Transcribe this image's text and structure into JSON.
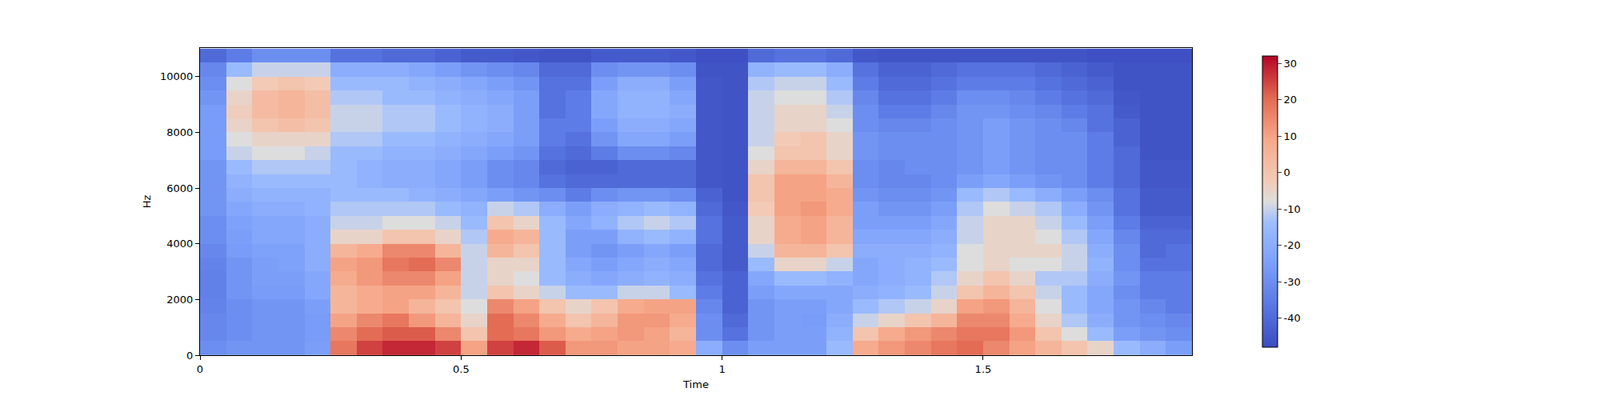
{
  "chart_data": {
    "type": "heatmap",
    "xlabel": "Time",
    "ylabel": "Hz",
    "xlim": [
      0,
      1.9
    ],
    "ylim": [
      0,
      11025
    ],
    "xticks": [
      0,
      0.5,
      1,
      1.5
    ],
    "yticks": [
      0,
      2000,
      4000,
      6000,
      8000,
      10000
    ],
    "zlim": [
      -48,
      32
    ],
    "zticks": [
      -40,
      -30,
      -20,
      -10,
      0,
      10,
      20,
      30
    ],
    "x": [
      0.025,
      0.075,
      0.125,
      0.175,
      0.225,
      0.275,
      0.325,
      0.375,
      0.425,
      0.475,
      0.525,
      0.575,
      0.625,
      0.675,
      0.725,
      0.775,
      0.825,
      0.875,
      0.925,
      0.975,
      1.025,
      1.075,
      1.125,
      1.175,
      1.225,
      1.275,
      1.325,
      1.375,
      1.425,
      1.475,
      1.525,
      1.575,
      1.625,
      1.675,
      1.725,
      1.775,
      1.825,
      1.875
    ],
    "y": [
      250,
      750,
      1250,
      1750,
      2250,
      2750,
      3250,
      3750,
      4250,
      4750,
      5250,
      5750,
      6250,
      6750,
      7250,
      7750,
      8250,
      8750,
      9250,
      9750,
      10250,
      10750
    ],
    "z": [
      [
        -30,
        -28,
        -28,
        -28,
        -25,
        18,
        25,
        28,
        28,
        25,
        10,
        25,
        28,
        22,
        12,
        12,
        10,
        10,
        8,
        -20,
        -30,
        -25,
        -25,
        -25,
        -15,
        8,
        12,
        15,
        18,
        20,
        15,
        10,
        5,
        0,
        -5,
        -15,
        -20,
        -25
      ],
      [
        -32,
        -30,
        -28,
        -28,
        -26,
        15,
        20,
        22,
        22,
        15,
        0,
        20,
        18,
        12,
        8,
        10,
        12,
        10,
        5,
        -30,
        -38,
        -28,
        -25,
        -25,
        -18,
        0,
        8,
        12,
        15,
        18,
        18,
        12,
        0,
        -8,
        -15,
        -25,
        -28,
        -30
      ],
      [
        -32,
        -30,
        -28,
        -28,
        -26,
        10,
        15,
        18,
        12,
        5,
        -5,
        20,
        15,
        8,
        0,
        5,
        12,
        12,
        8,
        -30,
        -40,
        -28,
        -25,
        -26,
        -20,
        -10,
        -5,
        0,
        5,
        15,
        15,
        8,
        -5,
        -12,
        -20,
        -28,
        -30,
        -32
      ],
      [
        -33,
        -30,
        -28,
        -28,
        -25,
        5,
        8,
        10,
        5,
        0,
        -8,
        15,
        10,
        0,
        -5,
        0,
        8,
        10,
        10,
        -32,
        -42,
        -28,
        -25,
        -25,
        -22,
        -15,
        -12,
        -10,
        -5,
        10,
        12,
        5,
        -8,
        -15,
        -22,
        -28,
        -32,
        -35
      ],
      [
        -34,
        -28,
        -26,
        -26,
        -22,
        5,
        8,
        10,
        10,
        5,
        -10,
        0,
        -5,
        -10,
        -15,
        -15,
        -10,
        -10,
        -15,
        -35,
        -42,
        -25,
        -22,
        -22,
        -22,
        -20,
        -18,
        -15,
        -10,
        0,
        5,
        0,
        -10,
        -15,
        -22,
        -30,
        -35,
        -35
      ],
      [
        -34,
        -28,
        -25,
        -25,
        -22,
        8,
        12,
        15,
        15,
        10,
        -10,
        -5,
        -8,
        -15,
        -20,
        -22,
        -20,
        -18,
        -20,
        -38,
        -42,
        -22,
        -15,
        -15,
        -18,
        -22,
        -20,
        -18,
        -12,
        -5,
        0,
        -5,
        -12,
        -12,
        -20,
        -28,
        -35,
        -35
      ],
      [
        -33,
        -28,
        -25,
        -24,
        -20,
        10,
        12,
        18,
        20,
        15,
        -10,
        -5,
        -5,
        -15,
        -22,
        -25,
        -22,
        -20,
        -22,
        -40,
        -44,
        -15,
        -5,
        -5,
        -10,
        -22,
        -20,
        -18,
        -15,
        -8,
        -5,
        -8,
        -8,
        -10,
        -18,
        -30,
        -38,
        -38
      ],
      [
        -32,
        -26,
        -24,
        -24,
        -20,
        5,
        8,
        15,
        15,
        5,
        -10,
        5,
        0,
        -15,
        -25,
        -28,
        -25,
        -22,
        -25,
        -40,
        -44,
        -10,
        5,
        5,
        0,
        -20,
        -20,
        -20,
        -18,
        -8,
        -5,
        -5,
        -5,
        -10,
        -20,
        -30,
        -40,
        -38
      ],
      [
        -30,
        -25,
        -22,
        -22,
        -20,
        -5,
        -5,
        0,
        0,
        -5,
        -12,
        8,
        5,
        -15,
        -25,
        -25,
        -18,
        -15,
        -18,
        -38,
        -44,
        -5,
        8,
        10,
        5,
        -22,
        -22,
        -22,
        -20,
        -10,
        -5,
        -5,
        -8,
        -12,
        -22,
        -32,
        -40,
        -40
      ],
      [
        -30,
        -24,
        -22,
        -22,
        -20,
        -10,
        -10,
        -8,
        -8,
        -10,
        -15,
        0,
        -5,
        -15,
        -22,
        -18,
        -12,
        -10,
        -12,
        -38,
        -44,
        -5,
        8,
        10,
        5,
        -25,
        -25,
        -25,
        -22,
        -10,
        -5,
        -5,
        -10,
        -15,
        -25,
        -35,
        -42,
        -42
      ],
      [
        -28,
        -22,
        -20,
        -20,
        -18,
        -12,
        -12,
        -12,
        -12,
        -15,
        -18,
        -10,
        -12,
        -20,
        -25,
        -20,
        -18,
        -15,
        -18,
        -40,
        -45,
        -2,
        10,
        12,
        8,
        -25,
        -28,
        -28,
        -25,
        -12,
        -8,
        -10,
        -12,
        -20,
        -28,
        -38,
        -44,
        -44
      ],
      [
        -28,
        -20,
        -18,
        -18,
        -18,
        -15,
        -15,
        -15,
        -18,
        -20,
        -22,
        -25,
        -28,
        -30,
        -35,
        -30,
        -28,
        -28,
        -30,
        -42,
        -46,
        0,
        10,
        10,
        8,
        -28,
        -30,
        -30,
        -28,
        -15,
        -12,
        -15,
        -20,
        -25,
        -30,
        -38,
        -44,
        -44
      ],
      [
        -28,
        -18,
        -15,
        -15,
        -15,
        -15,
        -18,
        -20,
        -20,
        -22,
        -25,
        -30,
        -32,
        -38,
        -40,
        -40,
        -40,
        -40,
        -40,
        -45,
        -46,
        0,
        10,
        10,
        5,
        -30,
        -32,
        -32,
        -30,
        -25,
        -22,
        -25,
        -28,
        -30,
        -35,
        -40,
        -45,
        -45
      ],
      [
        -28,
        -15,
        -12,
        -12,
        -12,
        -15,
        -18,
        -20,
        -20,
        -22,
        -25,
        -30,
        -32,
        -40,
        -42,
        -42,
        -40,
        -40,
        -40,
        -45,
        -46,
        -5,
        5,
        5,
        0,
        -30,
        -32,
        -30,
        -30,
        -28,
        -25,
        -28,
        -30,
        -30,
        -35,
        -40,
        -45,
        -45
      ],
      [
        -26,
        -10,
        -8,
        -8,
        -10,
        -15,
        -15,
        -18,
        -18,
        -20,
        -22,
        -25,
        -28,
        -38,
        -40,
        -35,
        -30,
        -30,
        -32,
        -45,
        -46,
        -8,
        0,
        0,
        -5,
        -28,
        -30,
        -30,
        -30,
        -28,
        -25,
        -28,
        -30,
        -30,
        -35,
        -40,
        -46,
        -46
      ],
      [
        -26,
        -8,
        -5,
        -5,
        -5,
        -12,
        -12,
        -15,
        -15,
        -18,
        -20,
        -22,
        -25,
        -35,
        -38,
        -28,
        -22,
        -22,
        -25,
        -45,
        -46,
        -10,
        -2,
        0,
        -5,
        -28,
        -30,
        -30,
        -30,
        -28,
        -25,
        -28,
        -30,
        -30,
        -35,
        -42,
        -46,
        -46
      ],
      [
        -26,
        -5,
        0,
        2,
        0,
        -10,
        -10,
        -12,
        -12,
        -15,
        -18,
        -20,
        -25,
        -35,
        -35,
        -25,
        -20,
        -20,
        -22,
        -45,
        -46,
        -10,
        -5,
        -5,
        -8,
        -30,
        -32,
        -32,
        -30,
        -28,
        -25,
        -28,
        -30,
        -32,
        -38,
        -42,
        -46,
        -46
      ],
      [
        -26,
        -3,
        3,
        5,
        2,
        -10,
        -10,
        -12,
        -12,
        -15,
        -18,
        -20,
        -25,
        -38,
        -35,
        -22,
        -18,
        -18,
        -20,
        -45,
        -46,
        -10,
        -5,
        -5,
        -10,
        -30,
        -35,
        -35,
        -32,
        -28,
        -28,
        -30,
        -32,
        -35,
        -38,
        -44,
        -46,
        -46
      ],
      [
        -28,
        -5,
        3,
        5,
        2,
        -12,
        -12,
        -15,
        -15,
        -18,
        -20,
        -22,
        -25,
        -38,
        -35,
        -22,
        -18,
        -18,
        -22,
        -45,
        -46,
        -10,
        -8,
        -8,
        -12,
        -32,
        -38,
        -38,
        -35,
        -30,
        -30,
        -32,
        -35,
        -38,
        -40,
        -45,
        -46,
        -46
      ],
      [
        -30,
        -8,
        -2,
        0,
        -2,
        -15,
        -15,
        -15,
        -18,
        -20,
        -22,
        -25,
        -28,
        -38,
        -38,
        -25,
        -20,
        -20,
        -25,
        -45,
        -46,
        -12,
        -10,
        -10,
        -15,
        -35,
        -40,
        -40,
        -38,
        -35,
        -35,
        -35,
        -38,
        -40,
        -42,
        -46,
        -46,
        -46
      ],
      [
        -32,
        -15,
        -10,
        -10,
        -10,
        -20,
        -20,
        -20,
        -22,
        -25,
        -28,
        -30,
        -32,
        -40,
        -40,
        -30,
        -28,
        -28,
        -30,
        -46,
        -46,
        -18,
        -15,
        -15,
        -20,
        -38,
        -42,
        -42,
        -40,
        -38,
        -38,
        -38,
        -40,
        -42,
        -44,
        -46,
        -46,
        -46
      ],
      [
        -40,
        -35,
        -30,
        -30,
        -30,
        -38,
        -38,
        -40,
        -40,
        -42,
        -44,
        -44,
        -45,
        -46,
        -46,
        -44,
        -44,
        -44,
        -45,
        -47,
        -47,
        -40,
        -38,
        -38,
        -40,
        -45,
        -46,
        -46,
        -46,
        -46,
        -46,
        -46,
        -46,
        -46,
        -47,
        -47,
        -47,
        -47
      ]
    ]
  }
}
